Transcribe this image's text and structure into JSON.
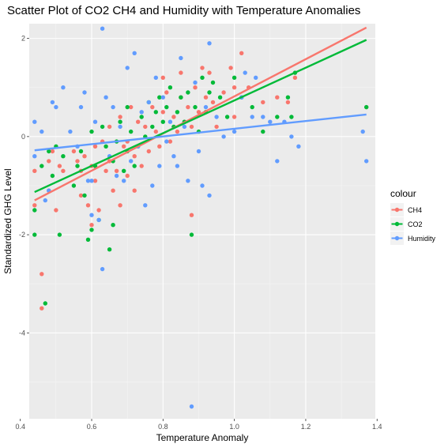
{
  "chart_data": {
    "type": "scatter",
    "title": "Scatter Plot of CO2 CH4 and Humidity with Temperature Anomalies",
    "xlabel": "Temperature Anomaly",
    "ylabel": "Standardized GHG Level",
    "xlim": [
      0.425,
      1.395
    ],
    "ylim": [
      -5.75,
      2.3
    ],
    "x_ticks": [
      0.4,
      0.6,
      0.8,
      1.0,
      1.2,
      1.4
    ],
    "x_tick_labels": [
      "0.4",
      "0.6",
      "0.8",
      "1.0",
      "1.2",
      "1.4"
    ],
    "y_ticks": [
      -4,
      -2,
      0,
      2
    ],
    "y_tick_labels": [
      "-4",
      "-2",
      "0",
      "2"
    ],
    "grid": true,
    "legend": {
      "title": "colour",
      "placement": "right"
    },
    "series": [
      {
        "name": "CH4",
        "color": "#F8766D",
        "trend": [
          [
            0.44,
            -1.3
          ],
          [
            1.37,
            2.22
          ]
        ],
        "points": [
          [
            0.44,
            -0.7
          ],
          [
            0.44,
            -1.4
          ],
          [
            0.46,
            -3.5
          ],
          [
            0.46,
            -2.8
          ],
          [
            0.48,
            -0.5
          ],
          [
            0.48,
            -1.1
          ],
          [
            0.49,
            -0.3
          ],
          [
            0.5,
            -1.5
          ],
          [
            0.51,
            -0.6
          ],
          [
            0.52,
            -0.7
          ],
          [
            0.55,
            -0.3
          ],
          [
            0.56,
            -0.5
          ],
          [
            0.57,
            -1.2
          ],
          [
            0.57,
            -0.7
          ],
          [
            0.58,
            -0.4
          ],
          [
            0.59,
            -1.4
          ],
          [
            0.6,
            -0.6
          ],
          [
            0.6,
            -1.8
          ],
          [
            0.61,
            -0.9
          ],
          [
            0.61,
            -0.2
          ],
          [
            0.62,
            -1.5
          ],
          [
            0.63,
            -0.1
          ],
          [
            0.64,
            -0.7
          ],
          [
            0.65,
            0.2
          ],
          [
            0.65,
            -0.5
          ],
          [
            0.66,
            -1.1
          ],
          [
            0.67,
            -0.7
          ],
          [
            0.68,
            -1.4
          ],
          [
            0.68,
            0.4
          ],
          [
            0.69,
            -0.2
          ],
          [
            0.7,
            -0.8
          ],
          [
            0.7,
            -0.1
          ],
          [
            0.71,
            0.6
          ],
          [
            0.72,
            -0.4
          ],
          [
            0.72,
            -1.1
          ],
          [
            0.73,
            0.3
          ],
          [
            0.74,
            -0.6
          ],
          [
            0.75,
            0.2
          ],
          [
            0.76,
            -0.3
          ],
          [
            0.77,
            0.6
          ],
          [
            0.78,
            0.1
          ],
          [
            0.79,
            -0.2
          ],
          [
            0.8,
            1.2
          ],
          [
            0.8,
            0.5
          ],
          [
            0.81,
            0.9
          ],
          [
            0.82,
            -0.1
          ],
          [
            0.83,
            0.4
          ],
          [
            0.84,
            0.1
          ],
          [
            0.85,
            1.3
          ],
          [
            0.85,
            0.8
          ],
          [
            0.86,
            0.3
          ],
          [
            0.87,
            0.6
          ],
          [
            0.88,
            -1.6
          ],
          [
            0.88,
            0.2
          ],
          [
            0.89,
            1.0
          ],
          [
            0.9,
            0.5
          ],
          [
            0.91,
            1.4
          ],
          [
            0.92,
            0.8
          ],
          [
            0.93,
            1.3
          ],
          [
            0.94,
            0.7
          ],
          [
            0.95,
            0.2
          ],
          [
            0.97,
            0.9
          ],
          [
            0.99,
            1.4
          ],
          [
            1.0,
            1.0
          ],
          [
            1.0,
            0.4
          ],
          [
            1.02,
            1.7
          ],
          [
            1.04,
            1.0
          ],
          [
            1.08,
            0.7
          ],
          [
            1.12,
            0.8
          ],
          [
            1.15,
            0.7
          ],
          [
            1.17,
            1.2
          ],
          [
            1.37,
            0.6
          ]
        ]
      },
      {
        "name": "CO2",
        "color": "#00BA38",
        "trend": [
          [
            0.44,
            -1.13
          ],
          [
            1.37,
            1.97
          ]
        ],
        "points": [
          [
            0.44,
            -2.0
          ],
          [
            0.44,
            -1.5
          ],
          [
            0.46,
            -0.6
          ],
          [
            0.47,
            -3.4
          ],
          [
            0.48,
            -0.3
          ],
          [
            0.49,
            -0.8
          ],
          [
            0.5,
            -0.2
          ],
          [
            0.51,
            -2.0
          ],
          [
            0.52,
            -0.4
          ],
          [
            0.55,
            -1.0
          ],
          [
            0.56,
            -0.6
          ],
          [
            0.57,
            -0.3
          ],
          [
            0.58,
            -1.2
          ],
          [
            0.59,
            -2.1
          ],
          [
            0.6,
            -1.9
          ],
          [
            0.6,
            0.1
          ],
          [
            0.61,
            -0.6
          ],
          [
            0.62,
            -1.7
          ],
          [
            0.63,
            0.2
          ],
          [
            0.64,
            -0.2
          ],
          [
            0.65,
            -2.3
          ],
          [
            0.66,
            -0.5
          ],
          [
            0.66,
            -1.8
          ],
          [
            0.67,
            -0.1
          ],
          [
            0.68,
            0.3
          ],
          [
            0.69,
            -0.7
          ],
          [
            0.7,
            -0.3
          ],
          [
            0.7,
            0.6
          ],
          [
            0.71,
            0.1
          ],
          [
            0.72,
            -0.6
          ],
          [
            0.73,
            -0.2
          ],
          [
            0.74,
            0.4
          ],
          [
            0.75,
            0.0
          ],
          [
            0.76,
            0.7
          ],
          [
            0.77,
            0.2
          ],
          [
            0.78,
            0.5
          ],
          [
            0.79,
            0.8
          ],
          [
            0.8,
            0.3
          ],
          [
            0.81,
            0.6
          ],
          [
            0.82,
            1.0
          ],
          [
            0.83,
            0.2
          ],
          [
            0.84,
            0.5
          ],
          [
            0.85,
            0.8
          ],
          [
            0.86,
            0.3
          ],
          [
            0.87,
            0.9
          ],
          [
            0.88,
            -2.0
          ],
          [
            0.89,
            0.6
          ],
          [
            0.9,
            0.1
          ],
          [
            0.91,
            1.2
          ],
          [
            0.92,
            0.5
          ],
          [
            0.93,
            0.9
          ],
          [
            0.94,
            1.1
          ],
          [
            0.96,
            0.8
          ],
          [
            0.98,
            0.4
          ],
          [
            1.0,
            1.2
          ],
          [
            1.02,
            0.8
          ],
          [
            1.05,
            0.6
          ],
          [
            1.08,
            0.1
          ],
          [
            1.12,
            0.4
          ],
          [
            1.15,
            0.8
          ],
          [
            1.16,
            0.4
          ],
          [
            1.17,
            1.3
          ],
          [
            1.37,
            0.6
          ]
        ]
      },
      {
        "name": "Humidity",
        "color": "#619CFF",
        "trend": [
          [
            0.44,
            -0.28
          ],
          [
            1.37,
            0.45
          ]
        ],
        "points": [
          [
            0.44,
            0.3
          ],
          [
            0.44,
            -0.4
          ],
          [
            0.46,
            0.1
          ],
          [
            0.47,
            -1.3
          ],
          [
            0.48,
            -1.1
          ],
          [
            0.49,
            0.7
          ],
          [
            0.5,
            0.6
          ],
          [
            0.52,
            1.0
          ],
          [
            0.54,
            0.1
          ],
          [
            0.56,
            -0.2
          ],
          [
            0.57,
            0.6
          ],
          [
            0.58,
            0.9
          ],
          [
            0.59,
            -0.9
          ],
          [
            0.6,
            -0.9
          ],
          [
            0.6,
            -1.6
          ],
          [
            0.61,
            0.3
          ],
          [
            0.62,
            -1.7
          ],
          [
            0.63,
            2.2
          ],
          [
            0.63,
            -2.7
          ],
          [
            0.64,
            0.8
          ],
          [
            0.65,
            -0.4
          ],
          [
            0.66,
            0.6
          ],
          [
            0.67,
            -0.8
          ],
          [
            0.68,
            0.2
          ],
          [
            0.69,
            -0.9
          ],
          [
            0.7,
            1.4
          ],
          [
            0.71,
            -0.5
          ],
          [
            0.72,
            1.7
          ],
          [
            0.73,
            -0.2
          ],
          [
            0.74,
            0.5
          ],
          [
            0.75,
            -1.4
          ],
          [
            0.76,
            0.7
          ],
          [
            0.77,
            -1.0
          ],
          [
            0.78,
            1.2
          ],
          [
            0.79,
            -0.6
          ],
          [
            0.8,
            0.8
          ],
          [
            0.81,
            -0.1
          ],
          [
            0.82,
            0.3
          ],
          [
            0.83,
            -0.4
          ],
          [
            0.84,
            -0.6
          ],
          [
            0.85,
            1.6
          ],
          [
            0.86,
            0.2
          ],
          [
            0.87,
            -0.9
          ],
          [
            0.88,
            -5.5
          ],
          [
            0.89,
            1.1
          ],
          [
            0.9,
            -0.3
          ],
          [
            0.91,
            -1.0
          ],
          [
            0.92,
            0.6
          ],
          [
            0.93,
            1.9
          ],
          [
            0.93,
            -1.2
          ],
          [
            0.95,
            0.4
          ],
          [
            0.97,
            0.0
          ],
          [
            1.0,
            0.1
          ],
          [
            1.02,
            0.8
          ],
          [
            1.03,
            1.3
          ],
          [
            1.05,
            0.4
          ],
          [
            1.06,
            1.2
          ],
          [
            1.08,
            0.4
          ],
          [
            1.1,
            0.3
          ],
          [
            1.12,
            -0.5
          ],
          [
            1.14,
            0.3
          ],
          [
            1.16,
            0.0
          ],
          [
            1.18,
            -0.2
          ],
          [
            1.36,
            0.1
          ],
          [
            1.37,
            -0.5
          ]
        ]
      }
    ]
  }
}
